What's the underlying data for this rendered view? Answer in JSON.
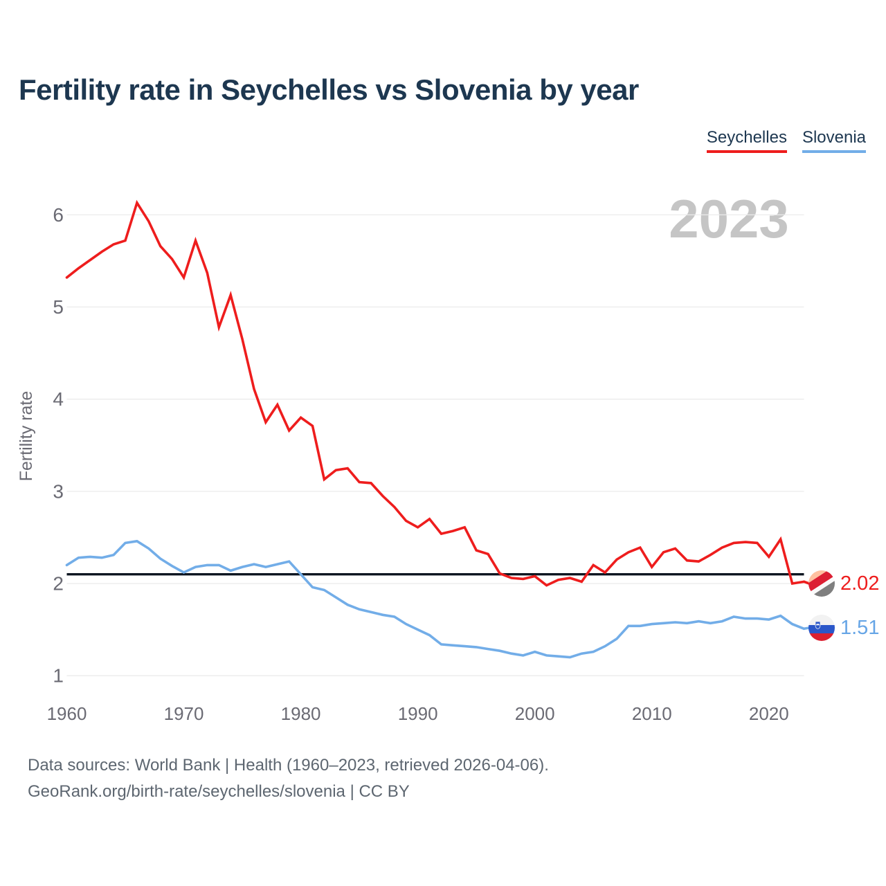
{
  "title": "Fertility rate in Seychelles vs Slovenia by year",
  "watermark": "2023",
  "legend": [
    {
      "label": "Seychelles",
      "color": "#ee1d1d"
    },
    {
      "label": "Slovenia",
      "color": "#72ade8"
    }
  ],
  "chart_data": {
    "type": "line",
    "title": "Fertility rate in Seychelles vs Slovenia by year",
    "xlabel": "",
    "ylabel": "Fertility rate",
    "grid": "horizontal",
    "ylim": [
      1,
      6.35
    ],
    "x_ticks": [
      1960,
      1970,
      1980,
      1990,
      2000,
      2010,
      2020
    ],
    "y_ticks": [
      1,
      2,
      3,
      4,
      5,
      6
    ],
    "reference_line": 2.1,
    "years": [
      1960,
      1961,
      1962,
      1963,
      1964,
      1965,
      1966,
      1967,
      1968,
      1969,
      1970,
      1971,
      1972,
      1973,
      1974,
      1975,
      1976,
      1977,
      1978,
      1979,
      1980,
      1981,
      1982,
      1983,
      1984,
      1985,
      1986,
      1987,
      1988,
      1989,
      1990,
      1991,
      1992,
      1993,
      1994,
      1995,
      1996,
      1997,
      1998,
      1999,
      2000,
      2001,
      2002,
      2003,
      2004,
      2005,
      2006,
      2007,
      2008,
      2009,
      2010,
      2011,
      2012,
      2013,
      2014,
      2015,
      2016,
      2017,
      2018,
      2019,
      2020,
      2021,
      2022,
      2023
    ],
    "series": [
      {
        "name": "Seychelles",
        "color": "#ee1d1d",
        "values": [
          5.32,
          5.42,
          5.51,
          5.6,
          5.68,
          5.72,
          6.13,
          5.93,
          5.66,
          5.52,
          5.32,
          5.72,
          5.37,
          4.78,
          5.13,
          4.65,
          4.11,
          3.75,
          3.94,
          3.66,
          3.8,
          3.71,
          3.13,
          3.23,
          3.25,
          3.1,
          3.09,
          2.95,
          2.83,
          2.68,
          2.61,
          2.7,
          2.54,
          2.57,
          2.61,
          2.36,
          2.32,
          2.11,
          2.06,
          2.05,
          2.08,
          1.98,
          2.04,
          2.06,
          2.02,
          2.2,
          2.12,
          2.26,
          2.34,
          2.39,
          2.18,
          2.34,
          2.38,
          2.25,
          2.24,
          2.31,
          2.39,
          2.44,
          2.45,
          2.44,
          2.29,
          2.48,
          2.0,
          2.02
        ]
      },
      {
        "name": "Slovenia",
        "color": "#72ade8",
        "values": [
          2.2,
          2.28,
          2.29,
          2.28,
          2.31,
          2.44,
          2.46,
          2.38,
          2.27,
          2.19,
          2.12,
          2.18,
          2.2,
          2.2,
          2.14,
          2.18,
          2.21,
          2.18,
          2.21,
          2.24,
          2.1,
          1.96,
          1.93,
          1.85,
          1.77,
          1.72,
          1.69,
          1.66,
          1.64,
          1.56,
          1.5,
          1.44,
          1.34,
          1.33,
          1.32,
          1.31,
          1.29,
          1.27,
          1.24,
          1.22,
          1.26,
          1.22,
          1.21,
          1.2,
          1.24,
          1.26,
          1.32,
          1.4,
          1.54,
          1.54,
          1.56,
          1.57,
          1.58,
          1.57,
          1.59,
          1.57,
          1.59,
          1.64,
          1.62,
          1.62,
          1.61,
          1.65,
          1.56,
          1.51
        ]
      }
    ],
    "end_labels": [
      {
        "series": "Seychelles",
        "value": "2.02"
      },
      {
        "series": "Slovenia",
        "value": "1.51"
      }
    ]
  },
  "footer": {
    "line1": "Data sources: World Bank | Health (1960–2023, retrieved 2026-04-06).",
    "line2": "GeoRank.org/birth-rate/seychelles/slovenia | CC BY"
  }
}
